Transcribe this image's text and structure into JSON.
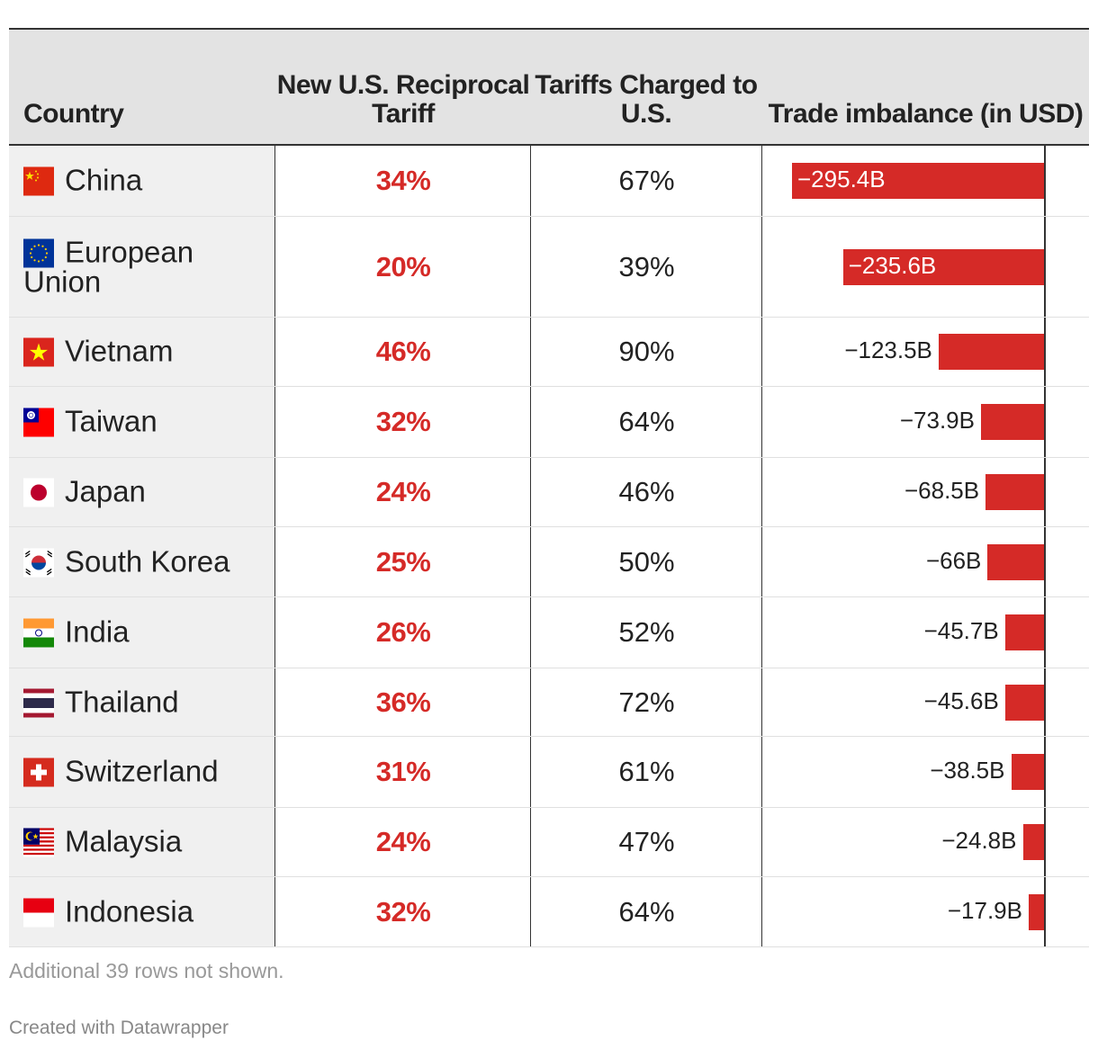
{
  "colors": {
    "accent": "#d52a27",
    "header_bg": "#e3e3e3",
    "country_bg": "#f0f0f0"
  },
  "header": {
    "country": "Country",
    "new_tariff": "New U.S. Reciprocal Tariff",
    "charged": "Tariffs Charged to U.S.",
    "trade": "Trade imbalance (in USD)"
  },
  "rows": [
    {
      "country": "China",
      "flag": "china-flag-icon",
      "new_tariff": "34%",
      "charged": "67%",
      "trade_label": "−295.4B"
    },
    {
      "country": "European Union",
      "flag": "eu-flag-icon",
      "new_tariff": "20%",
      "charged": "39%",
      "trade_label": "−235.6B"
    },
    {
      "country": "Vietnam",
      "flag": "vietnam-flag-icon",
      "new_tariff": "46%",
      "charged": "90%",
      "trade_label": "−123.5B"
    },
    {
      "country": "Taiwan",
      "flag": "taiwan-flag-icon",
      "new_tariff": "32%",
      "charged": "64%",
      "trade_label": "−73.9B"
    },
    {
      "country": "Japan",
      "flag": "japan-flag-icon",
      "new_tariff": "24%",
      "charged": "46%",
      "trade_label": "−68.5B"
    },
    {
      "country": "South Korea",
      "flag": "south-korea-flag-icon",
      "new_tariff": "25%",
      "charged": "50%",
      "trade_label": "−66B"
    },
    {
      "country": "India",
      "flag": "india-flag-icon",
      "new_tariff": "26%",
      "charged": "52%",
      "trade_label": "−45.7B"
    },
    {
      "country": "Thailand",
      "flag": "thailand-flag-icon",
      "new_tariff": "36%",
      "charged": "72%",
      "trade_label": "−45.6B"
    },
    {
      "country": "Switzerland",
      "flag": "switzerland-flag-icon",
      "new_tariff": "31%",
      "charged": "61%",
      "trade_label": "−38.5B"
    },
    {
      "country": "Malaysia",
      "flag": "malaysia-flag-icon",
      "new_tariff": "24%",
      "charged": "47%",
      "trade_label": "−24.8B"
    },
    {
      "country": "Indonesia",
      "flag": "indonesia-flag-icon",
      "new_tariff": "32%",
      "charged": "64%",
      "trade_label": "−17.9B"
    }
  ],
  "footer": {
    "note": "Additional 39 rows not shown.",
    "credit": "Created with Datawrapper"
  },
  "chart_data": {
    "type": "table",
    "columns": [
      "Country",
      "New U.S. Reciprocal Tariff",
      "Tariffs Charged to U.S.",
      "Trade imbalance (in USD)"
    ],
    "series": [
      {
        "name": "Trade imbalance (in USD)",
        "unit": "B",
        "values": [
          -295.4,
          -235.6,
          -123.5,
          -73.9,
          -68.5,
          -66,
          -45.7,
          -45.6,
          -38.5,
          -24.8,
          -17.9
        ]
      }
    ],
    "categories": [
      "China",
      "European Union",
      "Vietnam",
      "Taiwan",
      "Japan",
      "South Korea",
      "India",
      "Thailand",
      "Switzerland",
      "Malaysia",
      "Indonesia"
    ],
    "new_tariff_pct": [
      34,
      20,
      46,
      32,
      24,
      25,
      26,
      36,
      31,
      24,
      32
    ],
    "charged_pct": [
      67,
      39,
      90,
      64,
      46,
      50,
      52,
      72,
      61,
      47,
      64
    ],
    "xlim": [
      -295.4,
      0
    ]
  }
}
